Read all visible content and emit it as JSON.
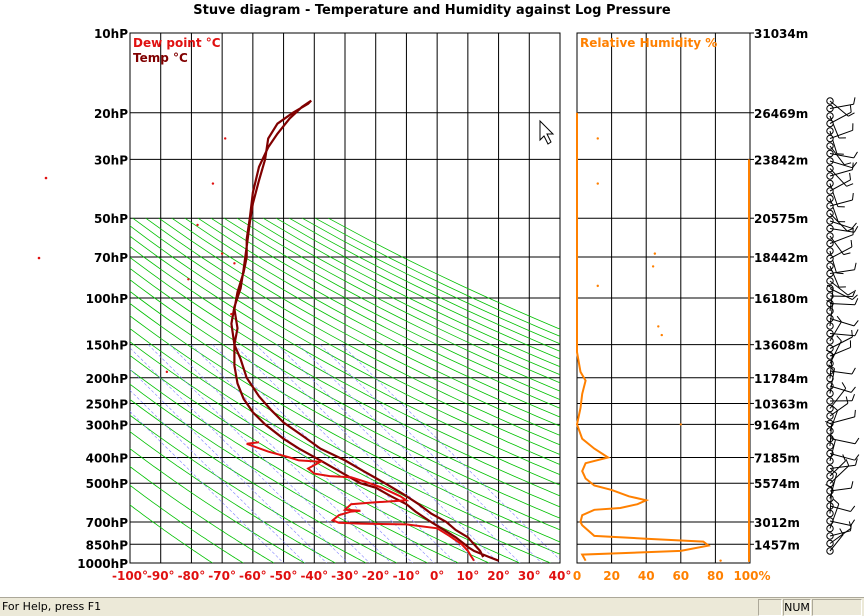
{
  "chart_data": {
    "type": "line",
    "title": "Stuve diagram - Temperature and Humidity against Log Pressure",
    "pressure_ticks": [
      "10hP",
      "20hP",
      "30hP",
      "50hP",
      "70hP",
      "100hP",
      "150hP",
      "200hP",
      "250hP",
      "300hP",
      "400hP",
      "500hP",
      "700hP",
      "850hP",
      "1000hP"
    ],
    "pressure_values": [
      10,
      20,
      30,
      50,
      70,
      100,
      150,
      200,
      250,
      300,
      400,
      500,
      700,
      850,
      1000
    ],
    "temp_ticks": [
      "-100°",
      "-90°",
      "-80°",
      "-70°",
      "-60°",
      "-50°",
      "-40°",
      "-30°",
      "-20°",
      "-10°",
      "0°",
      "10°",
      "20°",
      "30°",
      "40°"
    ],
    "temp_range": [
      -100,
      40
    ],
    "rh_ticks": [
      "0",
      "20",
      "40",
      "60",
      "80",
      "100%"
    ],
    "rh_range": [
      0,
      100
    ],
    "height_ticks": [
      {
        "p": 10,
        "label": "31034m"
      },
      {
        "p": 20,
        "label": "26469m"
      },
      {
        "p": 30,
        "label": "23842m"
      },
      {
        "p": 50,
        "label": "20575m"
      },
      {
        "p": 70,
        "label": "18442m"
      },
      {
        "p": 100,
        "label": "16180m"
      },
      {
        "p": 150,
        "label": "13608m"
      },
      {
        "p": 200,
        "label": "11784m"
      },
      {
        "p": 250,
        "label": "10363m"
      },
      {
        "p": 300,
        "label": "9164m"
      },
      {
        "p": 400,
        "label": "7185m"
      },
      {
        "p": 500,
        "label": "5574m"
      },
      {
        "p": 700,
        "label": "3012m"
      },
      {
        "p": 850,
        "label": "1457m"
      }
    ],
    "legend": {
      "dewpoint": "Dew point °C",
      "temp": "Temp °C",
      "rh": "Relative Humidity %"
    },
    "colors": {
      "temp": "#800000",
      "dewpoint": "#e01010",
      "rh": "#ff8000",
      "dry_adiabat": "#00c000",
      "mixing_ratio": "#8080ff"
    },
    "series": [
      {
        "name": "Temp °C",
        "points": [
          [
            20,
            980
          ],
          [
            17,
            950
          ],
          [
            12,
            900
          ],
          [
            10,
            870
          ],
          [
            9,
            850
          ],
          [
            6,
            800
          ],
          [
            3,
            760
          ],
          [
            -2,
            700
          ],
          [
            -7,
            640
          ],
          [
            -10,
            600
          ],
          [
            -15,
            560
          ],
          [
            -20,
            520
          ],
          [
            -25,
            500
          ],
          [
            -32,
            450
          ],
          [
            -38,
            410
          ],
          [
            -45,
            370
          ],
          [
            -50,
            340
          ],
          [
            -56,
            300
          ],
          [
            -60,
            270
          ],
          [
            -63,
            240
          ],
          [
            -65,
            210
          ],
          [
            -66,
            180
          ],
          [
            -66,
            150
          ],
          [
            -65,
            130
          ],
          [
            -66,
            110
          ],
          [
            -65,
            95
          ],
          [
            -63,
            80
          ],
          [
            -62,
            70
          ],
          [
            -62,
            60
          ],
          [
            -61,
            50
          ],
          [
            -60,
            40
          ],
          [
            -58,
            32
          ],
          [
            -55,
            27
          ],
          [
            -52,
            24
          ],
          [
            -48,
            21
          ],
          [
            -44,
            19
          ],
          [
            -41,
            18
          ],
          [
            -42,
            18.5
          ],
          [
            -47,
            20
          ],
          [
            -52,
            22
          ],
          [
            -55,
            25
          ],
          [
            -56,
            30
          ],
          [
            -58,
            36
          ],
          [
            -60,
            44
          ],
          [
            -61,
            52
          ],
          [
            -62,
            64
          ],
          [
            -63,
            78
          ],
          [
            -64,
            92
          ],
          [
            -66,
            108
          ],
          [
            -67,
            125
          ],
          [
            -66,
            150
          ],
          [
            -64,
            170
          ],
          [
            -62,
            200
          ],
          [
            -58,
            235
          ],
          [
            -54,
            265
          ],
          [
            -50,
            295
          ],
          [
            -44,
            330
          ],
          [
            -38,
            370
          ],
          [
            -30,
            410
          ],
          [
            -24,
            450
          ],
          [
            -17,
            500
          ],
          [
            -11,
            550
          ],
          [
            -6,
            600
          ],
          [
            -2,
            650
          ],
          [
            3,
            700
          ],
          [
            6,
            750
          ],
          [
            10,
            800
          ],
          [
            12,
            850
          ],
          [
            14,
            900
          ],
          [
            15,
            950
          ]
        ]
      },
      {
        "name": "Dew point °C",
        "points": [
          [
            12,
            980
          ],
          [
            11,
            940
          ],
          [
            10,
            900
          ],
          [
            8,
            850
          ],
          [
            4,
            790
          ],
          [
            0,
            740
          ],
          [
            -10,
            715
          ],
          [
            -25,
            710
          ],
          [
            -32,
            705
          ],
          [
            -34,
            690
          ],
          [
            -32,
            660
          ],
          [
            -28,
            640
          ],
          [
            -25,
            635
          ],
          [
            -30,
            630
          ],
          [
            -28,
            600
          ],
          [
            -20,
            590
          ],
          [
            -10,
            580
          ],
          [
            -12,
            560
          ],
          [
            -18,
            520
          ],
          [
            -22,
            500
          ],
          [
            -28,
            475
          ],
          [
            -35,
            470
          ],
          [
            -40,
            460
          ],
          [
            -42,
            440
          ],
          [
            -38,
            415
          ],
          [
            -45,
            410
          ],
          [
            -48,
            400
          ],
          [
            -55,
            380
          ],
          [
            -62,
            355
          ],
          [
            -58,
            350
          ]
        ]
      }
    ],
    "rh_series": [
      [
        5,
        980
      ],
      [
        3,
        930
      ],
      [
        60,
        900
      ],
      [
        76,
        860
      ],
      [
        73,
        830
      ],
      [
        40,
        810
      ],
      [
        10,
        790
      ],
      [
        3,
        720
      ],
      [
        2,
        700
      ],
      [
        3,
        660
      ],
      [
        10,
        630
      ],
      [
        25,
        620
      ],
      [
        35,
        600
      ],
      [
        40,
        580
      ],
      [
        30,
        560
      ],
      [
        20,
        530
      ],
      [
        10,
        510
      ],
      [
        5,
        480
      ],
      [
        3,
        450
      ],
      [
        5,
        420
      ],
      [
        18,
        400
      ],
      [
        10,
        370
      ],
      [
        3,
        340
      ],
      [
        0,
        300
      ],
      [
        2,
        260
      ],
      [
        3,
        230
      ],
      [
        5,
        205
      ],
      [
        2,
        190
      ],
      [
        0,
        160
      ],
      [
        0,
        100
      ],
      [
        0,
        50
      ],
      [
        0,
        30
      ],
      [
        0,
        20
      ]
    ]
  },
  "statusbar": {
    "help": "For Help, press F1",
    "num": "NUM"
  }
}
